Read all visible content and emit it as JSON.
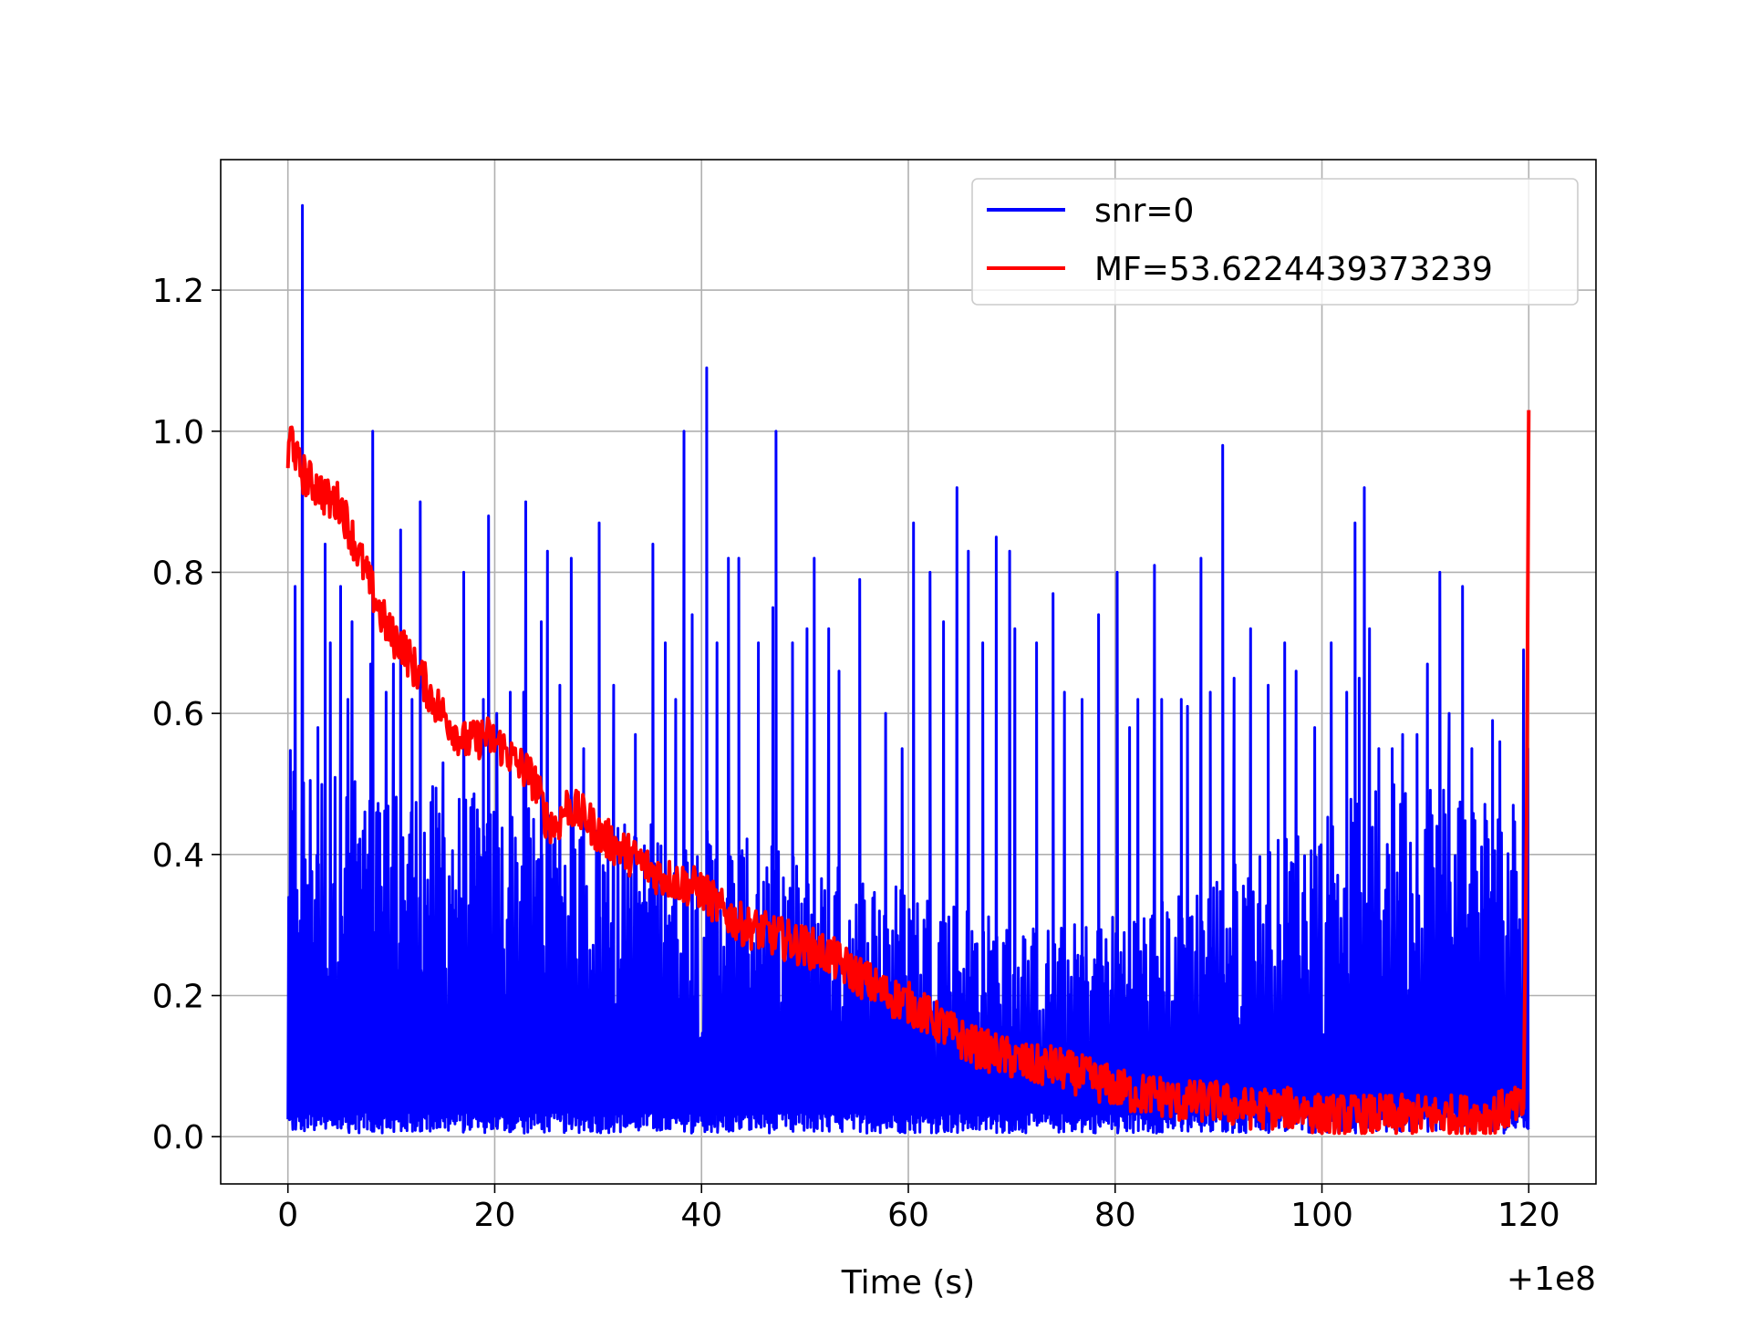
{
  "chart_data": {
    "type": "line",
    "title": "",
    "xlabel": "Time (s)",
    "ylabel": "",
    "x_offset_label": "+1e8",
    "xlim": [
      -6.5,
      126.5
    ],
    "ylim": [
      -0.067,
      1.385
    ],
    "x_ticks": [
      0,
      20,
      40,
      60,
      80,
      100,
      120
    ],
    "y_ticks": [
      0.0,
      0.2,
      0.4,
      0.6,
      0.8,
      1.0,
      1.2
    ],
    "x_tick_labels": [
      "0",
      "20",
      "40",
      "60",
      "80",
      "100",
      "120"
    ],
    "y_tick_labels": [
      "0.0",
      "0.2",
      "0.4",
      "0.6",
      "0.8",
      "1.0",
      "1.2"
    ],
    "grid": true,
    "legend_position": "top-right",
    "series": [
      {
        "name": "snr=0",
        "color": "#0000ff",
        "kind": "noisy-peaks",
        "x": [
          0,
          5,
          10,
          15,
          20,
          25,
          30,
          35,
          40,
          45,
          50,
          55,
          60,
          65,
          70,
          75,
          80,
          85,
          90,
          95,
          100,
          105,
          110,
          115,
          120
        ],
        "typical_max": [
          0.55,
          0.52,
          0.5,
          0.5,
          0.48,
          0.46,
          0.45,
          0.45,
          0.44,
          0.42,
          0.4,
          0.38,
          0.36,
          0.34,
          0.3,
          0.3,
          0.32,
          0.34,
          0.38,
          0.42,
          0.46,
          0.5,
          0.52,
          0.5,
          0.45
        ],
        "peaks": [
          {
            "x": 0.4,
            "y": 0.32
          },
          {
            "x": 0.7,
            "y": 0.78
          },
          {
            "x": 1.4,
            "y": 1.32
          },
          {
            "x": 2.9,
            "y": 0.58
          },
          {
            "x": 3.6,
            "y": 0.84
          },
          {
            "x": 4.1,
            "y": 0.7
          },
          {
            "x": 5.1,
            "y": 0.78
          },
          {
            "x": 5.8,
            "y": 0.62
          },
          {
            "x": 6.2,
            "y": 0.73
          },
          {
            "x": 8,
            "y": 0.67
          },
          {
            "x": 8.2,
            "y": 1.0
          },
          {
            "x": 9.5,
            "y": 0.63
          },
          {
            "x": 10.2,
            "y": 0.67
          },
          {
            "x": 10.9,
            "y": 0.86
          },
          {
            "x": 12,
            "y": 0.62
          },
          {
            "x": 12.8,
            "y": 0.9
          },
          {
            "x": 15,
            "y": 0.53
          },
          {
            "x": 17,
            "y": 0.8
          },
          {
            "x": 18.9,
            "y": 0.62
          },
          {
            "x": 19.4,
            "y": 0.88
          },
          {
            "x": 20.2,
            "y": 0.6
          },
          {
            "x": 21.5,
            "y": 0.63
          },
          {
            "x": 22.8,
            "y": 0.63
          },
          {
            "x": 23,
            "y": 0.9
          },
          {
            "x": 24.5,
            "y": 0.73
          },
          {
            "x": 25.1,
            "y": 0.83
          },
          {
            "x": 26.3,
            "y": 0.64
          },
          {
            "x": 27.4,
            "y": 0.82
          },
          {
            "x": 28.6,
            "y": 0.55
          },
          {
            "x": 30.1,
            "y": 0.87
          },
          {
            "x": 31.5,
            "y": 0.64
          },
          {
            "x": 33.6,
            "y": 0.57
          },
          {
            "x": 35.3,
            "y": 0.84
          },
          {
            "x": 36.5,
            "y": 0.7
          },
          {
            "x": 37.5,
            "y": 0.62
          },
          {
            "x": 38.3,
            "y": 1.0
          },
          {
            "x": 39.1,
            "y": 0.74
          },
          {
            "x": 40.5,
            "y": 1.09
          },
          {
            "x": 41.5,
            "y": 0.7
          },
          {
            "x": 42.6,
            "y": 0.82
          },
          {
            "x": 43.6,
            "y": 0.82
          },
          {
            "x": 45.5,
            "y": 0.7
          },
          {
            "x": 46.9,
            "y": 0.75
          },
          {
            "x": 47.2,
            "y": 1.0
          },
          {
            "x": 48.8,
            "y": 0.7
          },
          {
            "x": 50.2,
            "y": 0.72
          },
          {
            "x": 50.9,
            "y": 0.82
          },
          {
            "x": 52.3,
            "y": 0.72
          },
          {
            "x": 53.3,
            "y": 0.66
          },
          {
            "x": 55.3,
            "y": 0.79
          },
          {
            "x": 57.8,
            "y": 0.6
          },
          {
            "x": 59.4,
            "y": 0.55
          },
          {
            "x": 60.5,
            "y": 0.87
          },
          {
            "x": 62.1,
            "y": 0.8
          },
          {
            "x": 63.4,
            "y": 0.73
          },
          {
            "x": 64.7,
            "y": 0.92
          },
          {
            "x": 65.8,
            "y": 0.83
          },
          {
            "x": 67.2,
            "y": 0.7
          },
          {
            "x": 68.5,
            "y": 0.85
          },
          {
            "x": 69.8,
            "y": 0.83
          },
          {
            "x": 70.3,
            "y": 0.72
          },
          {
            "x": 72.4,
            "y": 0.7
          },
          {
            "x": 74,
            "y": 0.77
          },
          {
            "x": 75.1,
            "y": 0.63
          },
          {
            "x": 76.8,
            "y": 0.62
          },
          {
            "x": 78.4,
            "y": 0.74
          },
          {
            "x": 80.2,
            "y": 0.8
          },
          {
            "x": 81.4,
            "y": 0.58
          },
          {
            "x": 82.2,
            "y": 0.62
          },
          {
            "x": 83.8,
            "y": 0.81
          },
          {
            "x": 84.5,
            "y": 0.62
          },
          {
            "x": 86.4,
            "y": 0.62
          },
          {
            "x": 87,
            "y": 0.61
          },
          {
            "x": 88.3,
            "y": 0.82
          },
          {
            "x": 89.2,
            "y": 0.63
          },
          {
            "x": 90.4,
            "y": 0.98
          },
          {
            "x": 91.5,
            "y": 0.65
          },
          {
            "x": 93.1,
            "y": 0.72
          },
          {
            "x": 94.8,
            "y": 0.64
          },
          {
            "x": 96.4,
            "y": 0.7
          },
          {
            "x": 97.5,
            "y": 0.66
          },
          {
            "x": 99.3,
            "y": 0.58
          },
          {
            "x": 100.9,
            "y": 0.7
          },
          {
            "x": 102.4,
            "y": 0.63
          },
          {
            "x": 103.2,
            "y": 0.87
          },
          {
            "x": 103.6,
            "y": 0.65
          },
          {
            "x": 104.1,
            "y": 0.92
          },
          {
            "x": 104.6,
            "y": 0.72
          },
          {
            "x": 105.5,
            "y": 0.55
          },
          {
            "x": 106.8,
            "y": 0.55
          },
          {
            "x": 107.8,
            "y": 0.57
          },
          {
            "x": 109.2,
            "y": 0.57
          },
          {
            "x": 110.2,
            "y": 0.67
          },
          {
            "x": 111.4,
            "y": 0.8
          },
          {
            "x": 112.3,
            "y": 0.6
          },
          {
            "x": 113.6,
            "y": 0.78
          },
          {
            "x": 114.5,
            "y": 0.55
          },
          {
            "x": 116.5,
            "y": 0.59
          },
          {
            "x": 117.2,
            "y": 0.56
          },
          {
            "x": 118.5,
            "y": 0.47
          },
          {
            "x": 119.5,
            "y": 0.69
          },
          {
            "x": 119.9,
            "y": 0.55
          }
        ]
      },
      {
        "name": "MF=53.6224439373239",
        "color": "#ff0000",
        "kind": "noisy-trend",
        "x": [
          0,
          0.3,
          1,
          2,
          3,
          4,
          5,
          6,
          7,
          8,
          9,
          10,
          11,
          12,
          13,
          14,
          15,
          16,
          17,
          18,
          19,
          20,
          21,
          22,
          23,
          24,
          25,
          26,
          27,
          28,
          29,
          30,
          32,
          34,
          36,
          38,
          40,
          42,
          44,
          46,
          48,
          50,
          52,
          54,
          56,
          58,
          60,
          62,
          64,
          66,
          68,
          70,
          72,
          74,
          76,
          78,
          80,
          82,
          84,
          86,
          88,
          90,
          92,
          94,
          96,
          98,
          100,
          102,
          104,
          106,
          108,
          110,
          112,
          114,
          116,
          118,
          119.5,
          119.8,
          120
        ],
        "y": [
          0.95,
          1.0,
          0.95,
          0.93,
          0.92,
          0.9,
          0.9,
          0.86,
          0.82,
          0.78,
          0.74,
          0.71,
          0.7,
          0.67,
          0.65,
          0.62,
          0.6,
          0.58,
          0.56,
          0.56,
          0.57,
          0.56,
          0.55,
          0.53,
          0.52,
          0.5,
          0.45,
          0.44,
          0.47,
          0.46,
          0.45,
          0.43,
          0.41,
          0.39,
          0.37,
          0.36,
          0.35,
          0.32,
          0.3,
          0.29,
          0.28,
          0.27,
          0.26,
          0.24,
          0.22,
          0.2,
          0.19,
          0.17,
          0.15,
          0.13,
          0.12,
          0.11,
          0.1,
          0.1,
          0.09,
          0.08,
          0.07,
          0.06,
          0.06,
          0.05,
          0.05,
          0.05,
          0.04,
          0.04,
          0.04,
          0.04,
          0.03,
          0.03,
          0.03,
          0.03,
          0.03,
          0.03,
          0.03,
          0.03,
          0.03,
          0.04,
          0.04,
          0.45,
          1.03
        ]
      }
    ]
  }
}
